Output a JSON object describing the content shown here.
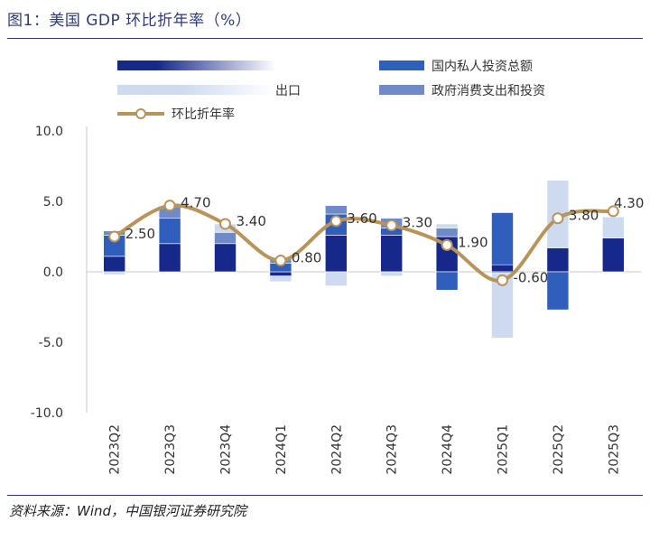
{
  "title": "图1：美国 GDP 环比折年率（%）",
  "source": "资料来源：Wind，中国银河证券研究院",
  "colors": {
    "consumption": "#16288a",
    "net_exports": "#cddaf0",
    "investment": "#2f5ebc",
    "government": "#6e8bc8",
    "line": "#b8935a",
    "axis": "#c8c8c8",
    "text": "#333333"
  },
  "chart_data": {
    "type": "bar",
    "stacked": true,
    "categories": [
      "2023Q2",
      "2023Q3",
      "2023Q4",
      "2024Q1",
      "2024Q2",
      "2024Q3",
      "2024Q4",
      "2025Q1",
      "2025Q2",
      "2025Q3"
    ],
    "ylim": [
      -10,
      10
    ],
    "yticks": [
      "10.0",
      "5.0",
      "0.0",
      "-5.0",
      "-10.0"
    ],
    "ytick_values": [
      10,
      5,
      0,
      -5,
      -10
    ],
    "legend_position": "top",
    "legend_labels": [
      "",
      "国内私人投资总额",
      "出口",
      "政府消费支出和投资",
      "环比折年率"
    ],
    "series": [
      {
        "key": "consumption",
        "values": [
          1.1,
          2.0,
          2.0,
          -0.3,
          2.6,
          2.6,
          2.5,
          0.5,
          1.7,
          2.4
        ]
      },
      {
        "key": "investment",
        "values": [
          1.5,
          1.8,
          0.0,
          0.6,
          1.5,
          0.5,
          -1.3,
          3.7,
          -2.7,
          0.0
        ]
      },
      {
        "key": "government",
        "values": [
          0.3,
          0.8,
          0.8,
          0.3,
          0.6,
          0.7,
          0.6,
          -0.1,
          0.0,
          0.0
        ]
      },
      {
        "key": "net_exports",
        "values": [
          -0.2,
          0.1,
          0.6,
          -0.4,
          -1.0,
          -0.3,
          0.3,
          -4.6,
          4.8,
          1.5
        ]
      }
    ],
    "line_values": [
      2.5,
      4.7,
      3.4,
      0.8,
      3.6,
      3.3,
      1.9,
      -0.6,
      3.8,
      4.3
    ],
    "data_labels": [
      "2.50",
      "4.70",
      "3.40",
      "0.80",
      "3.60",
      "3.30",
      "1.90",
      "-0.60",
      "3.80",
      "4.30"
    ]
  }
}
